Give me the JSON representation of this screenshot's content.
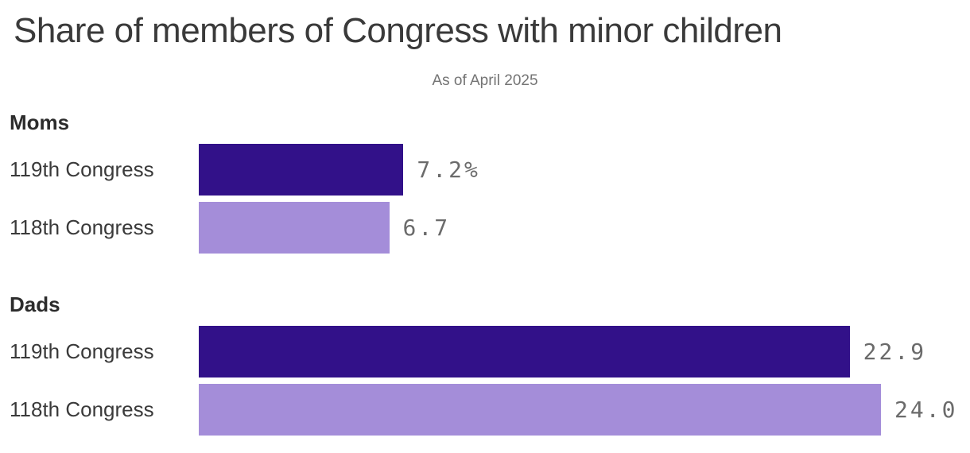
{
  "chart_data": {
    "type": "bar",
    "orientation": "horizontal",
    "title": "Share of members of Congress with minor children",
    "subtitle": "As of April 2025",
    "value_unit": "%",
    "xlim": [
      0,
      24
    ],
    "grid": false,
    "legend_position": "none",
    "colors": {
      "congress_119_bar": "#321189",
      "congress_118_bar": "#a48dd9",
      "value_label_text": "#6b6b6b"
    },
    "groups": [
      {
        "name": "Moms",
        "rows": [
          {
            "label": "119th Congress",
            "value": 7.2,
            "value_label": "7.2%",
            "color": "#321189"
          },
          {
            "label": "118th Congress",
            "value": 6.7,
            "value_label": "6.7",
            "color": "#a48dd9"
          }
        ]
      },
      {
        "name": "Dads",
        "rows": [
          {
            "label": "119th Congress",
            "value": 22.9,
            "value_label": "22.9",
            "color": "#321189"
          },
          {
            "label": "118th Congress",
            "value": 24.0,
            "value_label": "24.0",
            "color": "#a48dd9"
          }
        ]
      }
    ]
  }
}
